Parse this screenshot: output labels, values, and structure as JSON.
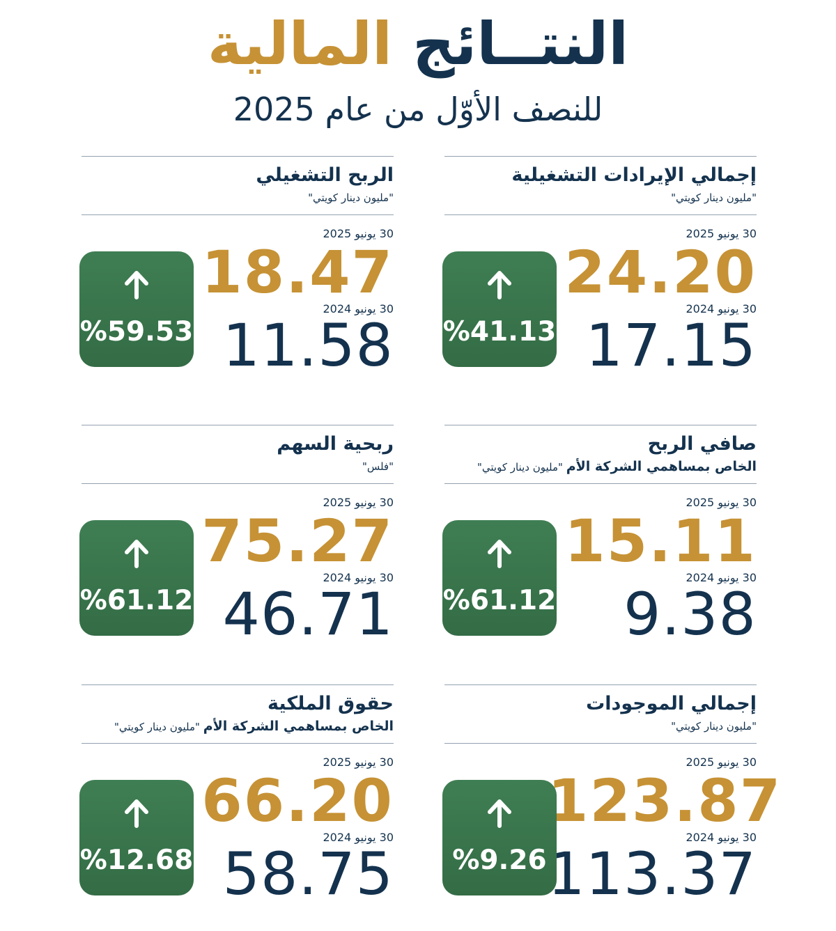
{
  "header": {
    "title_word1": "النتــائج",
    "title_word2": "المالية",
    "subtitle": "للنصف الأوّل من عام 2025"
  },
  "colors": {
    "navy": "#14324e",
    "gold": "#c69235",
    "green": "#3a7549"
  },
  "cards": [
    {
      "title": "إجمالي الإيرادات التشغيلية",
      "subtitle": "\"مليون دينار كويتي\"",
      "label_2025": "30 يونيو 2025",
      "value_2025": "24.20",
      "label_2024": "30 يونيو 2024",
      "value_2024": "17.15",
      "change": "%41.13",
      "icon": "arrow-up-icon"
    },
    {
      "title": "الربح التشغيلي",
      "subtitle": "\"مليون دينار كويتي\"",
      "label_2025": "30 يونيو 2025",
      "value_2025": "18.47",
      "label_2024": "30 يونيو 2024",
      "value_2024": "11.58",
      "change": "%59.53",
      "icon": "arrow-up-icon"
    },
    {
      "title": "صافي الربح",
      "subtitle_bold": "الخاص بمساهمي الشركة الأم",
      "subtitle": "\"مليون دينار كويتي\"",
      "label_2025": "30 يونيو 2025",
      "value_2025": "15.11",
      "label_2024": "30 يونيو 2024",
      "value_2024": "9.38",
      "change": "%61.12",
      "icon": "arrow-up-icon"
    },
    {
      "title": "ربحية السهم",
      "subtitle": "\"فلس\"",
      "label_2025": "30 يونيو 2025",
      "value_2025": "75.27",
      "label_2024": "30 يونيو 2024",
      "value_2024": "46.71",
      "change": "%61.12",
      "icon": "arrow-up-icon"
    },
    {
      "title": "إجمالي الموجودات",
      "subtitle": "\"مليون دينار كويتي\"",
      "label_2025": "30 يونيو 2025",
      "value_2025": "123.87",
      "label_2024": "30 يونيو 2024",
      "value_2024": "113.37",
      "change": "%9.26",
      "icon": "arrow-up-icon"
    },
    {
      "title": "حقوق الملكية",
      "subtitle_bold": "الخاص بمساهمي الشركة الأم",
      "subtitle": "\"مليون دينار كويتي\"",
      "label_2025": "30 يونيو 2025",
      "value_2025": "66.20",
      "label_2024": "30 يونيو 2024",
      "value_2024": "58.75",
      "change": "%12.68",
      "icon": "arrow-up-icon"
    }
  ]
}
